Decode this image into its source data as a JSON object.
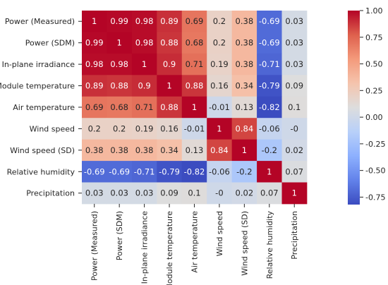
{
  "chart_data": {
    "type": "heatmap",
    "labels": [
      "Power (Measured)",
      "Power (SDM)",
      "In-plane irradiance",
      "Module temperature",
      "Air temperature",
      "Wind speed",
      "Wind speed (SD)",
      "Relative humidity",
      "Precipitation"
    ],
    "matrix": [
      [
        1,
        0.99,
        0.98,
        0.89,
        0.69,
        0.2,
        0.38,
        -0.69,
        0.03
      ],
      [
        0.99,
        1,
        0.98,
        0.88,
        0.68,
        0.2,
        0.38,
        -0.69,
        0.03
      ],
      [
        0.98,
        0.98,
        1,
        0.9,
        0.71,
        0.19,
        0.38,
        -0.71,
        0.03
      ],
      [
        0.89,
        0.88,
        0.9,
        1,
        0.88,
        0.16,
        0.34,
        -0.79,
        0.09
      ],
      [
        0.69,
        0.68,
        0.71,
        0.88,
        1,
        -0.01,
        0.13,
        -0.82,
        0.1
      ],
      [
        0.2,
        0.2,
        0.19,
        0.16,
        -0.01,
        1,
        0.84,
        -0.06,
        0
      ],
      [
        0.38,
        0.38,
        0.38,
        0.34,
        0.13,
        0.84,
        1,
        -0.2,
        0.02
      ],
      [
        -0.69,
        -0.69,
        -0.71,
        -0.79,
        -0.82,
        -0.06,
        -0.2,
        1,
        0.07
      ],
      [
        0.03,
        0.03,
        0.03,
        0.09,
        0.1,
        0,
        0.02,
        0.07,
        1
      ]
    ],
    "colormap": "coolwarm",
    "vmin": -0.82,
    "vmax": 1,
    "colorbar_ticks": [
      "1.00",
      "0.75",
      "0.50",
      "0.25",
      "0.00",
      "-0.25",
      "-0.50",
      "-0.75"
    ],
    "colorbar_tick_values": [
      1,
      0.75,
      0.5,
      0.25,
      0,
      -0.25,
      -0.5,
      -0.75
    ]
  }
}
